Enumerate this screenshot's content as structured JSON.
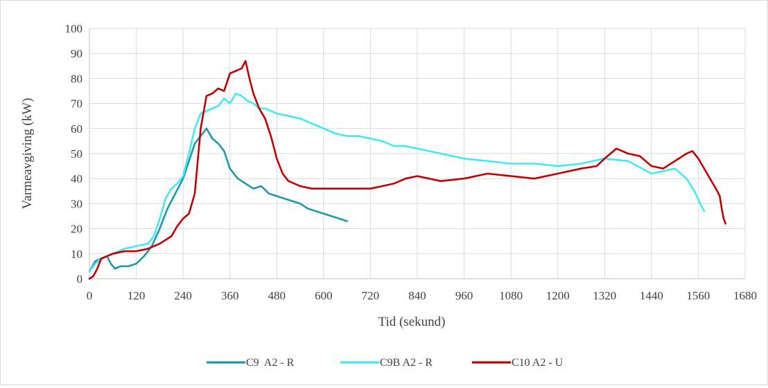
{
  "chart_data": {
    "type": "line",
    "title": "",
    "xlabel": "Tid (sekund)",
    "ylabel": "Varmeavgiving (kW)",
    "xlim": [
      0,
      1680
    ],
    "ylim": [
      0,
      100
    ],
    "x_ticks": [
      0,
      120,
      240,
      360,
      480,
      600,
      720,
      840,
      960,
      1080,
      1200,
      1320,
      1440,
      1560,
      1680
    ],
    "y_ticks": [
      0,
      10,
      20,
      30,
      40,
      50,
      60,
      70,
      80,
      90,
      100
    ],
    "grid": true,
    "legend_position": "bottom",
    "series": [
      {
        "name": "C9  A2 - R",
        "color": "#1e98a6",
        "x": [
          0,
          15,
          30,
          45,
          55,
          65,
          80,
          100,
          120,
          140,
          160,
          180,
          200,
          220,
          240,
          255,
          270,
          285,
          300,
          315,
          330,
          345,
          360,
          380,
          400,
          420,
          440,
          460,
          480,
          500,
          520,
          540,
          560,
          580,
          600,
          620,
          640,
          660
        ],
        "y": [
          3,
          7,
          8,
          9,
          6,
          4,
          5,
          5,
          6,
          9,
          13,
          20,
          28,
          34,
          40,
          47,
          54,
          57,
          60,
          56,
          54,
          51,
          44,
          40,
          38,
          36,
          37,
          34,
          33,
          32,
          31,
          30,
          28,
          27,
          26,
          25,
          24,
          23
        ]
      },
      {
        "name": "C9B A2 - R",
        "color": "#42e8f5",
        "x": [
          0,
          15,
          30,
          60,
          90,
          120,
          150,
          165,
          180,
          195,
          210,
          225,
          240,
          255,
          270,
          285,
          300,
          315,
          330,
          345,
          360,
          375,
          390,
          405,
          420,
          435,
          450,
          480,
          510,
          540,
          570,
          600,
          630,
          660,
          690,
          720,
          750,
          780,
          810,
          840,
          870,
          900,
          960,
          1020,
          1080,
          1140,
          1200,
          1260,
          1320,
          1380,
          1440,
          1500,
          1530,
          1550,
          1565,
          1575
        ],
        "y": [
          3,
          6,
          8,
          10,
          12,
          13,
          14,
          17,
          24,
          32,
          36,
          38,
          41,
          50,
          60,
          66,
          67,
          68,
          69,
          72,
          70,
          74,
          73,
          71,
          70,
          68,
          68,
          66,
          65,
          64,
          62,
          60,
          58,
          57,
          57,
          56,
          55,
          53,
          53,
          52,
          51,
          50,
          48,
          47,
          46,
          46,
          45,
          46,
          48,
          47,
          42,
          44,
          40,
          35,
          30,
          27
        ]
      },
      {
        "name": "C10 A2 - U",
        "color": "#c00000",
        "x": [
          0,
          10,
          20,
          30,
          60,
          90,
          120,
          150,
          180,
          210,
          225,
          240,
          255,
          270,
          285,
          300,
          315,
          330,
          345,
          360,
          375,
          390,
          400,
          410,
          420,
          435,
          450,
          465,
          480,
          495,
          510,
          540,
          570,
          600,
          630,
          660,
          690,
          720,
          750,
          780,
          810,
          840,
          870,
          900,
          960,
          1020,
          1080,
          1140,
          1200,
          1260,
          1300,
          1320,
          1350,
          1380,
          1410,
          1440,
          1470,
          1500,
          1530,
          1545,
          1560,
          1575,
          1590,
          1605,
          1615,
          1620,
          1625,
          1630
        ],
        "y": [
          0,
          1,
          4,
          8,
          10,
          11,
          11,
          12,
          14,
          17,
          21,
          24,
          26,
          34,
          60,
          73,
          74,
          76,
          75,
          82,
          83,
          84,
          87,
          80,
          74,
          68,
          64,
          57,
          48,
          42,
          39,
          37,
          36,
          36,
          36,
          36,
          36,
          36,
          37,
          38,
          40,
          41,
          40,
          39,
          40,
          42,
          41,
          40,
          42,
          44,
          45,
          48,
          52,
          50,
          49,
          45,
          44,
          47,
          50,
          51,
          48,
          44,
          40,
          36,
          33,
          28,
          24,
          22
        ]
      }
    ]
  }
}
